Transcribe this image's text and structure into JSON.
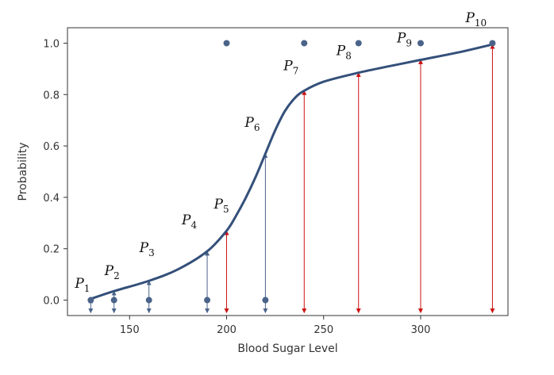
{
  "chart_data": {
    "type": "scatter",
    "title": "",
    "xlabel": "Blood Sugar Level",
    "ylabel": "Probability",
    "xlim": [
      118,
      345
    ],
    "ylim": [
      -0.06,
      1.06
    ],
    "xticks": [
      150,
      200,
      250,
      300
    ],
    "yticks": [
      0.0,
      0.2,
      0.4,
      0.6,
      0.8,
      1.0
    ],
    "ytick_labels": [
      "0.0",
      "0.2",
      "0.4",
      "0.6",
      "0.8",
      "1.0"
    ],
    "grid": false,
    "colors": {
      "curve": "#34507a",
      "point": "#4a6389",
      "arrow_class0": "#4a6389",
      "arrow_class1": "#cc1111",
      "axes": "#333333"
    },
    "points": [
      {
        "label": "P",
        "sub": "1",
        "x": 130,
        "y": 0,
        "prob": 0.005
      },
      {
        "label": "P",
        "sub": "2",
        "x": 142,
        "y": 0,
        "prob": 0.035
      },
      {
        "label": "P",
        "sub": "3",
        "x": 160,
        "y": 0,
        "prob": 0.075
      },
      {
        "label": "P",
        "sub": "4",
        "x": 190,
        "y": 0,
        "prob": 0.19
      },
      {
        "label": "P",
        "sub": "5",
        "x": 200,
        "y": 1,
        "prob": 0.27
      },
      {
        "label": "P",
        "sub": "6",
        "x": 220,
        "y": 0,
        "prob": 0.57
      },
      {
        "label": "P",
        "sub": "7",
        "x": 240,
        "y": 1,
        "prob": 0.815
      },
      {
        "label": "P",
        "sub": "8",
        "x": 268,
        "y": 1,
        "prob": 0.885
      },
      {
        "label": "P",
        "sub": "9",
        "x": 300,
        "y": 1,
        "prob": 0.935
      },
      {
        "label": "P",
        "sub": "10",
        "x": 337,
        "y": 1,
        "prob": 0.995
      }
    ],
    "curve": {
      "x": [
        130,
        142,
        160,
        175,
        190,
        200,
        205,
        210,
        215,
        220,
        225,
        230,
        235,
        240,
        250,
        268,
        285,
        300,
        320,
        337
      ],
      "y": [
        0.005,
        0.035,
        0.075,
        0.12,
        0.19,
        0.27,
        0.33,
        0.4,
        0.48,
        0.57,
        0.66,
        0.735,
        0.785,
        0.815,
        0.85,
        0.885,
        0.912,
        0.935,
        0.965,
        0.995
      ]
    }
  }
}
